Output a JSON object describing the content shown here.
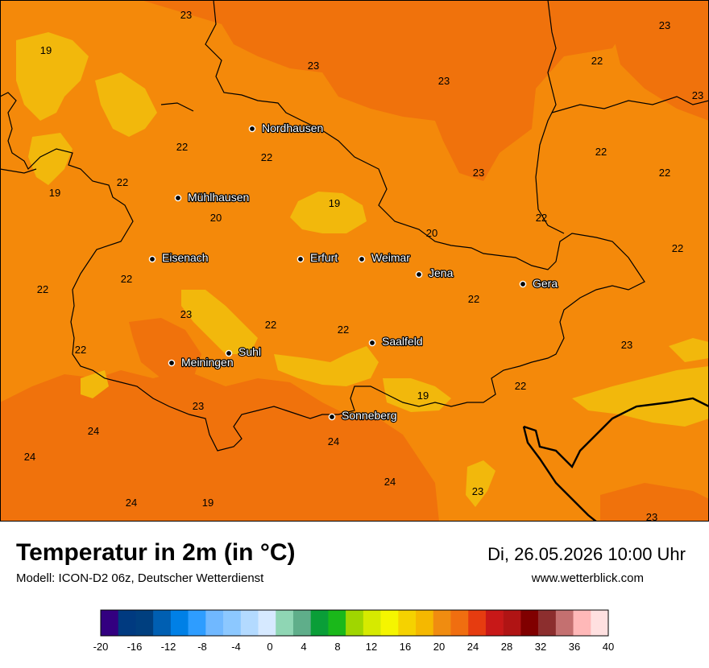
{
  "header": {
    "title": "Temperatur in 2m (in °C)",
    "subtitle": "Modell: ICON-D2 06z, Deutscher Wetterdienst",
    "datetime": "Di, 26.05.2026 10:00 Uhr",
    "website": "www.wetterblick.com"
  },
  "cities": [
    {
      "name": "Nordhausen"
    },
    {
      "name": "Mühlhausen"
    },
    {
      "name": "Eisenach"
    },
    {
      "name": "Erfurt"
    },
    {
      "name": "Weimar"
    },
    {
      "name": "Jena"
    },
    {
      "name": "Gera"
    },
    {
      "name": "Saalfeld"
    },
    {
      "name": "Suhl"
    },
    {
      "name": "Meiningen"
    },
    {
      "name": "Sonneberg"
    }
  ],
  "value_labels": [
    "23",
    "19",
    "23",
    "23",
    "22",
    "23",
    "22",
    "22",
    "22",
    "22",
    "23",
    "22",
    "19",
    "19",
    "20",
    "22",
    "20",
    "22",
    "22",
    "22",
    "23",
    "22",
    "22",
    "22",
    "22",
    "23",
    "19",
    "22",
    "23",
    "24",
    "24",
    "24",
    "24",
    "24",
    "19",
    "23"
  ],
  "legend": {
    "ticks": [
      "-20",
      "-16",
      "-12",
      "-8",
      "-4",
      "0",
      "4",
      "8",
      "12",
      "16",
      "20",
      "24",
      "28",
      "32",
      "36",
      "40"
    ],
    "colors": [
      "#330080",
      "#003a80",
      "#003f7f",
      "#005fb2",
      "#0080e6",
      "#2e9dff",
      "#70b8ff",
      "#8cc8ff",
      "#b3daff",
      "#d6e9ff",
      "#8fd6b4",
      "#5fae8a",
      "#0a9e38",
      "#1ab81a",
      "#a0d600",
      "#d6ea00",
      "#f5f500",
      "#f5d200",
      "#f5b800",
      "#f08c10",
      "#f06e10",
      "#e63c10",
      "#c81818",
      "#b01414",
      "#800000",
      "#8c2e2e",
      "#c47070",
      "#ffb8b8",
      "#ffe0e0"
    ]
  },
  "colors": {
    "warm_orange": "#f0720c",
    "mid_orange": "#f4890a",
    "yellow": "#f2b80c"
  }
}
